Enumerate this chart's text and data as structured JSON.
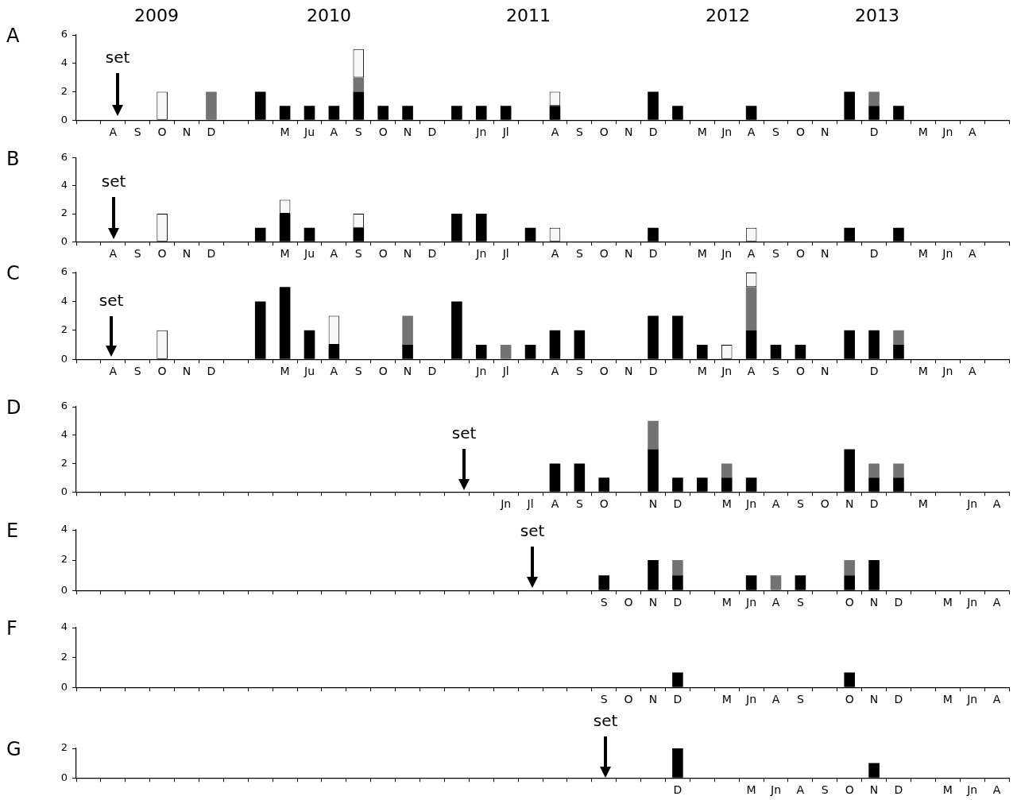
{
  "chart_data": [
    {
      "type": "bar",
      "title": "A",
      "stacked": true,
      "ylim": [
        0,
        6
      ],
      "yticks": [
        0,
        2,
        4,
        6
      ],
      "annotations": [
        "2009",
        "2010",
        "2011",
        "2012",
        "2013",
        "set"
      ],
      "categories": [
        null,
        "A",
        "S",
        "O",
        "N",
        "D",
        null,
        null,
        "M",
        "Ju",
        "A",
        "S",
        "O",
        "N",
        "D",
        null,
        "Jn",
        "Jl",
        null,
        "A",
        "S",
        "O",
        "N",
        "D",
        null,
        "M",
        "Jn",
        "A",
        "S",
        "O",
        "N",
        null,
        "D",
        null,
        "M",
        "Jn",
        "A",
        null
      ],
      "series": [
        {
          "color": "#000000",
          "values": [
            null,
            null,
            null,
            null,
            null,
            null,
            null,
            2,
            1,
            1,
            1,
            2,
            1,
            1,
            null,
            1,
            1,
            1,
            null,
            1,
            null,
            null,
            null,
            2,
            1,
            null,
            null,
            1,
            null,
            null,
            null,
            2,
            1,
            1,
            null,
            null,
            null,
            null
          ]
        },
        {
          "color": "#737373",
          "values": [
            null,
            null,
            null,
            null,
            null,
            2,
            null,
            null,
            null,
            null,
            null,
            1,
            null,
            null,
            null,
            null,
            null,
            null,
            null,
            null,
            null,
            null,
            null,
            null,
            null,
            null,
            null,
            null,
            null,
            null,
            null,
            null,
            1,
            null,
            null,
            null,
            null,
            null
          ]
        },
        {
          "color": "#f7f7f7",
          "values": [
            null,
            null,
            null,
            2,
            null,
            null,
            null,
            null,
            null,
            null,
            null,
            2,
            null,
            null,
            null,
            null,
            null,
            null,
            null,
            1,
            null,
            null,
            null,
            null,
            null,
            null,
            null,
            null,
            null,
            null,
            null,
            null,
            null,
            null,
            null,
            null,
            null,
            null
          ]
        }
      ]
    },
    {
      "type": "bar",
      "title": "B",
      "stacked": true,
      "ylim": [
        0,
        6
      ],
      "yticks": [
        0,
        2,
        4,
        6
      ],
      "annotations": [
        "set"
      ],
      "categories": [
        null,
        "A",
        "S",
        "O",
        "N",
        "D",
        null,
        null,
        "M",
        "Ju",
        "A",
        "S",
        "O",
        "N",
        "D",
        null,
        "Jn",
        "Jl",
        null,
        "A",
        "S",
        "O",
        "N",
        "D",
        null,
        "M",
        "Jn",
        "A",
        "S",
        "O",
        "N",
        null,
        "D",
        null,
        "M",
        "Jn",
        "A",
        null
      ],
      "series": [
        {
          "color": "#000000",
          "values": [
            null,
            null,
            null,
            null,
            null,
            null,
            null,
            1,
            2,
            1,
            null,
            1,
            null,
            null,
            null,
            2,
            2,
            null,
            1,
            null,
            null,
            null,
            null,
            1,
            null,
            null,
            null,
            null,
            null,
            null,
            null,
            1,
            null,
            1,
            null,
            null,
            null,
            null
          ]
        },
        {
          "color": "#f7f7f7",
          "values": [
            null,
            null,
            null,
            2,
            null,
            null,
            null,
            null,
            1,
            null,
            null,
            1,
            null,
            null,
            null,
            null,
            null,
            null,
            null,
            1,
            null,
            null,
            null,
            null,
            null,
            null,
            null,
            1,
            null,
            null,
            null,
            null,
            null,
            null,
            null,
            null,
            null,
            null
          ]
        }
      ]
    },
    {
      "type": "bar",
      "title": "C",
      "stacked": true,
      "ylim": [
        0,
        6
      ],
      "yticks": [
        0,
        2,
        4,
        6
      ],
      "annotations": [
        "set"
      ],
      "categories": [
        null,
        "A",
        "S",
        "O",
        "N",
        "D",
        null,
        null,
        "M",
        "Ju",
        "A",
        "S",
        "O",
        "N",
        "D",
        null,
        "Jn",
        "Jl",
        null,
        "A",
        "S",
        "O",
        "N",
        "D",
        null,
        "M",
        "Jn",
        "A",
        "S",
        "O",
        "N",
        null,
        "D",
        null,
        "M",
        "Jn",
        "A",
        null
      ],
      "series": [
        {
          "color": "#000000",
          "values": [
            null,
            null,
            null,
            null,
            null,
            null,
            null,
            4,
            5,
            2,
            1,
            null,
            null,
            1,
            null,
            4,
            1,
            null,
            1,
            2,
            2,
            null,
            null,
            3,
            3,
            1,
            null,
            2,
            1,
            1,
            null,
            2,
            2,
            1,
            null,
            null,
            null,
            null
          ]
        },
        {
          "color": "#737373",
          "values": [
            null,
            null,
            null,
            null,
            null,
            null,
            null,
            null,
            null,
            null,
            null,
            null,
            null,
            2,
            null,
            null,
            null,
            1,
            null,
            null,
            null,
            null,
            null,
            null,
            null,
            null,
            null,
            3,
            null,
            null,
            null,
            null,
            null,
            1,
            null,
            null,
            null,
            null
          ]
        },
        {
          "color": "#f7f7f7",
          "values": [
            null,
            null,
            null,
            2,
            null,
            null,
            null,
            null,
            null,
            null,
            2,
            null,
            null,
            null,
            null,
            null,
            null,
            null,
            null,
            null,
            null,
            null,
            null,
            null,
            null,
            null,
            1,
            1,
            null,
            null,
            null,
            null,
            null,
            null,
            null,
            null,
            null,
            null
          ]
        }
      ]
    },
    {
      "type": "bar",
      "title": "D",
      "stacked": true,
      "ylim": [
        0,
        6
      ],
      "yticks": [
        0,
        2,
        4,
        6
      ],
      "annotations": [
        "set"
      ],
      "categories": [
        null,
        null,
        null,
        null,
        null,
        null,
        null,
        null,
        null,
        null,
        null,
        null,
        null,
        null,
        null,
        null,
        null,
        "Jn",
        "Jl",
        "A",
        "S",
        "O",
        null,
        "N",
        "D",
        null,
        "M",
        "Jn",
        "A",
        "S",
        "O",
        "N",
        "D",
        null,
        "M",
        null,
        "Jn",
        "A"
      ],
      "series": [
        {
          "color": "#000000",
          "values": [
            null,
            null,
            null,
            null,
            null,
            null,
            null,
            null,
            null,
            null,
            null,
            null,
            null,
            null,
            null,
            null,
            null,
            null,
            null,
            2,
            2,
            1,
            null,
            3,
            1,
            1,
            1,
            1,
            null,
            null,
            null,
            3,
            1,
            1,
            null,
            null,
            null,
            null
          ]
        },
        {
          "color": "#737373",
          "values": [
            null,
            null,
            null,
            null,
            null,
            null,
            null,
            null,
            null,
            null,
            null,
            null,
            null,
            null,
            null,
            null,
            null,
            null,
            null,
            null,
            null,
            null,
            null,
            2,
            null,
            null,
            1,
            null,
            null,
            null,
            null,
            null,
            1,
            1,
            null,
            null,
            null,
            null
          ]
        }
      ]
    },
    {
      "type": "bar",
      "title": "E",
      "stacked": true,
      "ylim": [
        0,
        4
      ],
      "yticks": [
        0,
        2,
        4
      ],
      "annotations": [
        "set"
      ],
      "categories": [
        null,
        null,
        null,
        null,
        null,
        null,
        null,
        null,
        null,
        null,
        null,
        null,
        null,
        null,
        null,
        null,
        null,
        null,
        null,
        null,
        null,
        "S",
        "O",
        "N",
        "D",
        null,
        "M",
        "Jn",
        "A",
        "S",
        null,
        "O",
        "N",
        "D",
        null,
        "M",
        "Jn",
        "A"
      ],
      "series": [
        {
          "color": "#000000",
          "values": [
            null,
            null,
            null,
            null,
            null,
            null,
            null,
            null,
            null,
            null,
            null,
            null,
            null,
            null,
            null,
            null,
            null,
            null,
            null,
            null,
            null,
            1,
            null,
            2,
            1,
            null,
            null,
            1,
            null,
            1,
            null,
            1,
            2,
            null,
            null,
            null,
            null,
            null
          ]
        },
        {
          "color": "#737373",
          "values": [
            null,
            null,
            null,
            null,
            null,
            null,
            null,
            null,
            null,
            null,
            null,
            null,
            null,
            null,
            null,
            null,
            null,
            null,
            null,
            null,
            null,
            null,
            null,
            null,
            1,
            null,
            null,
            null,
            1,
            null,
            null,
            1,
            null,
            null,
            null,
            null,
            null,
            null
          ]
        }
      ]
    },
    {
      "type": "bar",
      "title": "F",
      "stacked": true,
      "ylim": [
        0,
        4
      ],
      "yticks": [
        0,
        2,
        4
      ],
      "categories": [
        null,
        null,
        null,
        null,
        null,
        null,
        null,
        null,
        null,
        null,
        null,
        null,
        null,
        null,
        null,
        null,
        null,
        null,
        null,
        null,
        null,
        "S",
        "O",
        "N",
        "D",
        null,
        "M",
        "Jn",
        "A",
        "S",
        null,
        "O",
        "N",
        "D",
        null,
        "M",
        "Jn",
        "A"
      ],
      "series": [
        {
          "color": "#000000",
          "values": [
            null,
            null,
            null,
            null,
            null,
            null,
            null,
            null,
            null,
            null,
            null,
            null,
            null,
            null,
            null,
            null,
            null,
            null,
            null,
            null,
            null,
            null,
            null,
            null,
            1,
            null,
            null,
            null,
            null,
            null,
            null,
            1,
            null,
            null,
            null,
            null,
            null,
            null
          ]
        }
      ]
    },
    {
      "type": "bar",
      "title": "G",
      "stacked": true,
      "ylim": [
        0,
        2
      ],
      "yticks": [
        0,
        2
      ],
      "annotations": [
        "set"
      ],
      "categories": [
        null,
        null,
        null,
        null,
        null,
        null,
        null,
        null,
        null,
        null,
        null,
        null,
        null,
        null,
        null,
        null,
        null,
        null,
        null,
        null,
        null,
        null,
        null,
        null,
        "D",
        null,
        null,
        "M",
        "Jn",
        "A",
        "S",
        "O",
        "N",
        "D",
        null,
        "M",
        "Jn",
        "A"
      ],
      "series": [
        {
          "color": "#000000",
          "values": [
            null,
            null,
            null,
            null,
            null,
            null,
            null,
            null,
            null,
            null,
            null,
            null,
            null,
            null,
            null,
            null,
            null,
            null,
            null,
            null,
            null,
            null,
            null,
            null,
            2,
            null,
            null,
            null,
            null,
            null,
            null,
            null,
            1,
            null,
            null,
            null,
            null,
            null
          ]
        }
      ]
    }
  ]
}
